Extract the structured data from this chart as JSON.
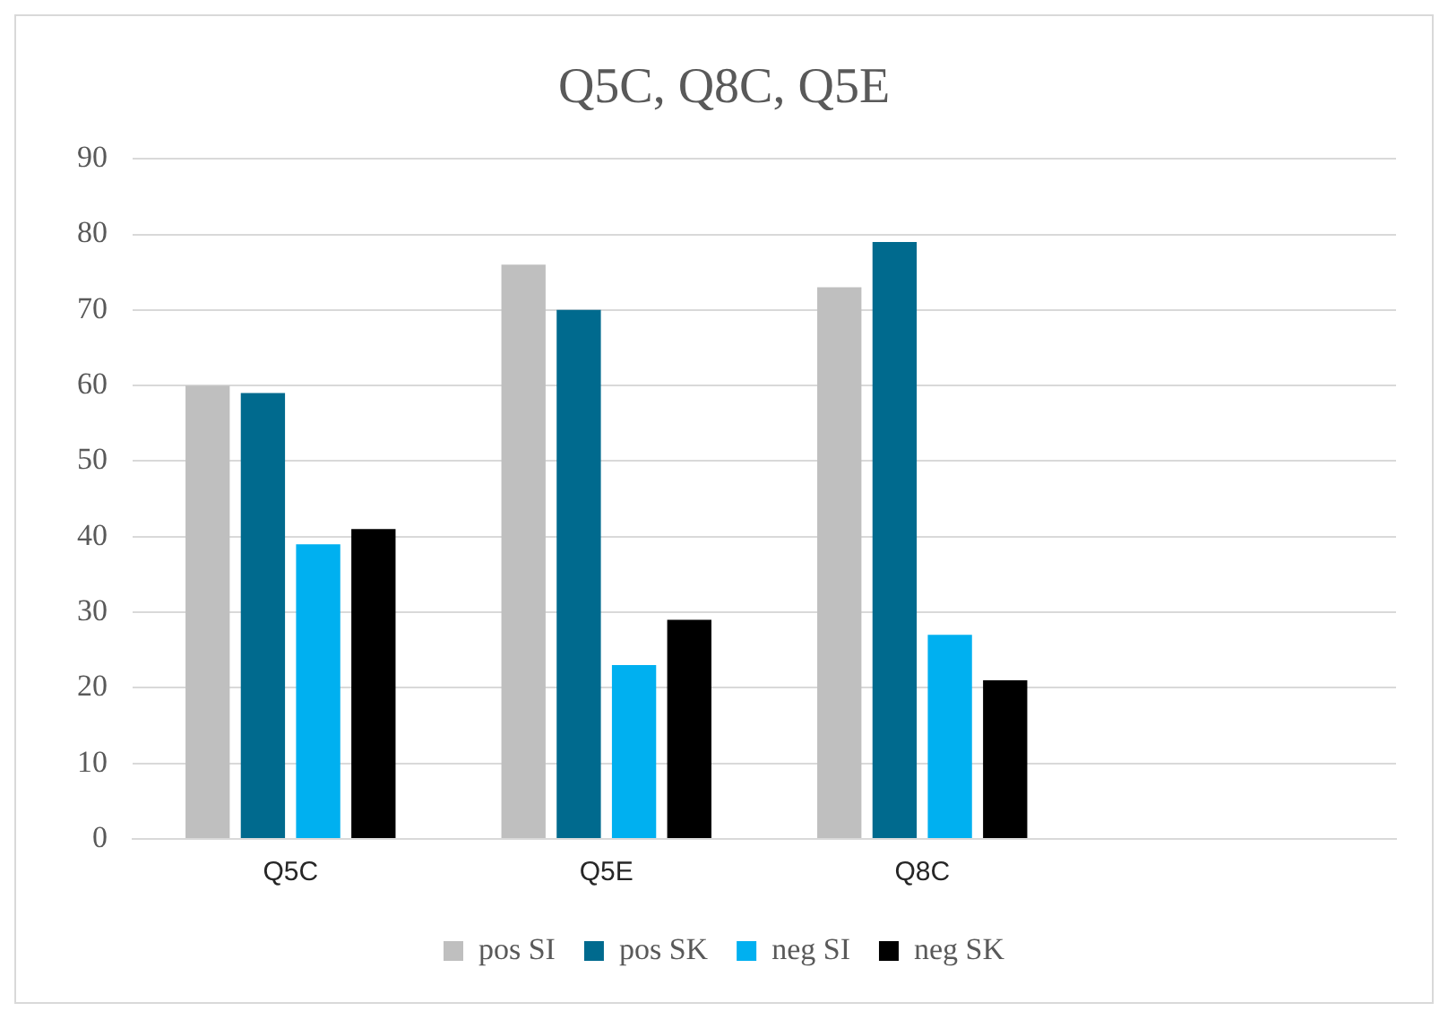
{
  "chart_data": {
    "type": "bar",
    "title": "Q5C, Q8C, Q5E",
    "categories": [
      "Q5C",
      "Q5E",
      "Q8C",
      null
    ],
    "series": [
      {
        "name": "pos SI",
        "color": "#bfbfbf",
        "values": [
          60,
          76,
          73,
          null
        ]
      },
      {
        "name": "pos SK",
        "color": "#006a8e",
        "values": [
          59,
          70,
          79,
          null
        ]
      },
      {
        "name": "neg SI",
        "color": "#00b0f0",
        "values": [
          39,
          23,
          27,
          null
        ]
      },
      {
        "name": "neg SK",
        "color": "#000000",
        "values": [
          41,
          29,
          21,
          null
        ]
      }
    ],
    "ylim": [
      0,
      90
    ],
    "yticks": [
      0,
      10,
      20,
      30,
      40,
      50,
      60,
      70,
      80,
      90
    ],
    "grid": "y",
    "legend": "bottom"
  }
}
